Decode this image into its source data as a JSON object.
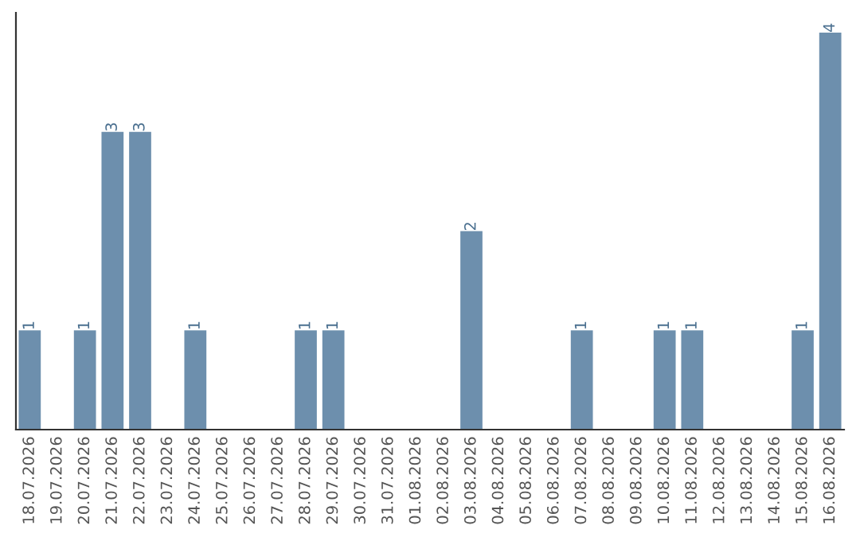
{
  "chart_data": {
    "type": "bar",
    "categories": [
      "18.07.2026",
      "19.07.2026",
      "20.07.2026",
      "21.07.2026",
      "22.07.2026",
      "23.07.2026",
      "24.07.2026",
      "25.07.2026",
      "26.07.2026",
      "27.07.2026",
      "28.07.2026",
      "29.07.2026",
      "30.07.2026",
      "31.07.2026",
      "01.08.2026",
      "02.08.2026",
      "03.08.2026",
      "04.08.2026",
      "05.08.2026",
      "06.08.2026",
      "07.08.2026",
      "08.08.2026",
      "09.08.2026",
      "10.08.2026",
      "11.08.2026",
      "12.08.2026",
      "13.08.2026",
      "14.08.2026",
      "15.08.2026",
      "16.08.2026"
    ],
    "values": [
      1,
      0,
      1,
      3,
      3,
      0,
      1,
      0,
      0,
      0,
      1,
      1,
      0,
      0,
      0,
      0,
      2,
      0,
      0,
      0,
      1,
      0,
      0,
      1,
      1,
      0,
      0,
      0,
      1,
      4
    ],
    "value_labels": [
      "1",
      null,
      "1",
      "3",
      "3",
      null,
      "1",
      null,
      null,
      null,
      "1",
      "1",
      null,
      null,
      null,
      null,
      "2",
      null,
      null,
      null,
      "1",
      null,
      null,
      "1",
      "1",
      null,
      null,
      null,
      "1",
      "4"
    ],
    "color": "#6d8fad",
    "ylim": [
      0,
      4.2
    ],
    "tick_labels": "x",
    "grid": false,
    "legend": false
  }
}
